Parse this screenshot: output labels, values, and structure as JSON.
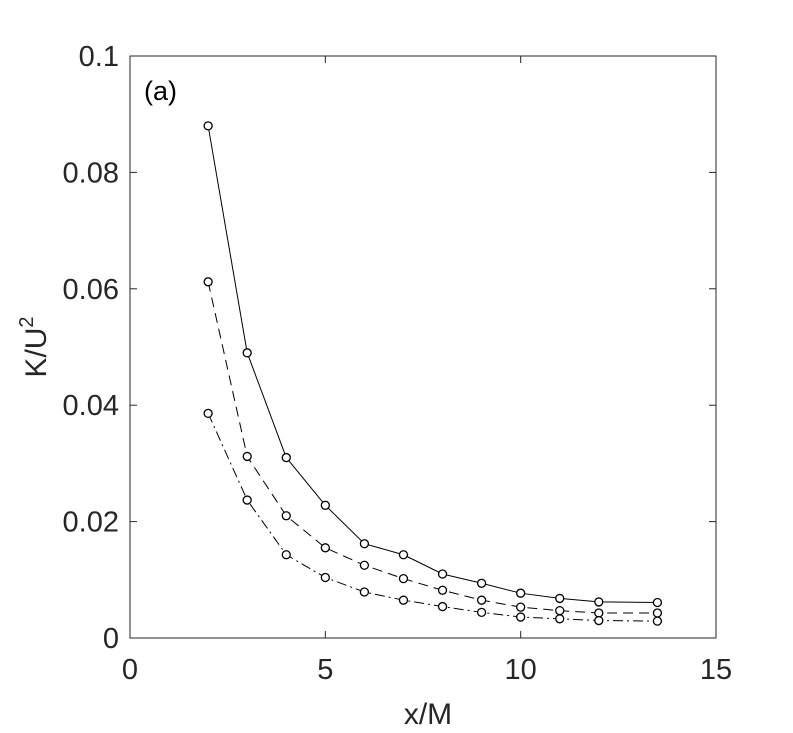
{
  "chart_data": {
    "type": "line",
    "panel_label": "(a)",
    "xlabel": "x/M",
    "ylabel_base": "K/U",
    "ylabel_sup": "2",
    "xlim": [
      0,
      15
    ],
    "ylim": [
      0,
      0.1
    ],
    "xticks": [
      0,
      5,
      10,
      15
    ],
    "xtick_labels": [
      "0",
      "5",
      "10",
      "15"
    ],
    "yticks": [
      0,
      0.02,
      0.04,
      0.06,
      0.08,
      0.1
    ],
    "ytick_labels": [
      "0",
      "0.02",
      "0.04",
      "0.06",
      "0.08",
      "0.1"
    ],
    "grid": false,
    "x": [
      2,
      3,
      4,
      5,
      6,
      7,
      8,
      9,
      10,
      11,
      12,
      13.5
    ],
    "series": [
      {
        "line_style": "solid",
        "marker": "circle",
        "values": [
          0.088,
          0.049,
          0.031,
          0.0228,
          0.0162,
          0.0143,
          0.011,
          0.0094,
          0.0077,
          0.0068,
          0.0062,
          0.0061
        ]
      },
      {
        "line_style": "dashed",
        "marker": "circle",
        "values": [
          0.0612,
          0.0312,
          0.021,
          0.0155,
          0.0125,
          0.0102,
          0.0082,
          0.0065,
          0.0053,
          0.0047,
          0.0043,
          0.0043
        ]
      },
      {
        "line_style": "dash-dot",
        "marker": "circle",
        "values": [
          0.0386,
          0.0237,
          0.0143,
          0.0104,
          0.0079,
          0.0065,
          0.0054,
          0.0044,
          0.0036,
          0.0033,
          0.003,
          0.0029
        ]
      }
    ]
  }
}
